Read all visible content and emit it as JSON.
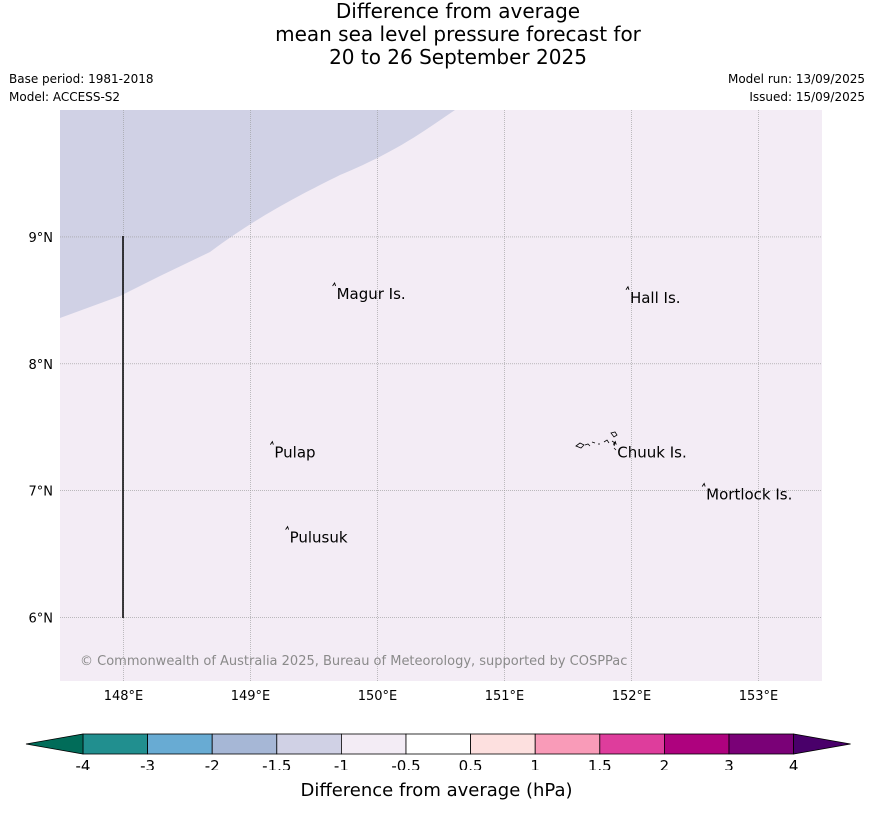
{
  "title": {
    "line1": "Difference from average",
    "line2": "mean sea level pressure forecast for",
    "line3": "20 to 26 September 2025"
  },
  "meta": {
    "base_period": "Base period: 1981-2018",
    "model": "Model: ACCESS-S2",
    "model_run": "Model run: 13/09/2025",
    "issued": "Issued: 15/09/2025"
  },
  "map": {
    "extent": {
      "lon": [
        147.5,
        153.5
      ],
      "lat": [
        5.5,
        10.0
      ]
    },
    "lon_ticks": [
      {
        "value": 148,
        "label": "148°E"
      },
      {
        "value": 149,
        "label": "149°E"
      },
      {
        "value": 150,
        "label": "150°E"
      },
      {
        "value": 151,
        "label": "151°E"
      },
      {
        "value": 152,
        "label": "152°E"
      },
      {
        "value": 153,
        "label": "153°E"
      }
    ],
    "lat_ticks": [
      {
        "value": 9,
        "label": "9°N"
      },
      {
        "value": 8,
        "label": "8°N"
      },
      {
        "value": 7,
        "label": "7°N"
      },
      {
        "value": 6,
        "label": "6°N"
      }
    ],
    "places": [
      {
        "name": "Magur Is.",
        "lon": 149.67,
        "lat": 8.55
      },
      {
        "name": "Hall Is.",
        "lon": 151.98,
        "lat": 8.52
      },
      {
        "name": "Pulap",
        "lon": 149.18,
        "lat": 7.3
      },
      {
        "name": "Chuuk Is.",
        "lon": 151.88,
        "lat": 7.3
      },
      {
        "name": "Mortlock Is.",
        "lon": 152.58,
        "lat": 6.97
      },
      {
        "name": "Pulusuk",
        "lon": 149.3,
        "lat": 6.63
      }
    ],
    "background_category": "-0.5 to -1",
    "background_color": "#f3ecf5",
    "region_category": "-1 to -1.5",
    "region_color": "#d0d1e5",
    "copyright": "© Commonwealth of Australia 2025, Bureau of Meteorology, supported by COSPPac"
  },
  "colorbar": {
    "label": "Difference from average (hPa)",
    "ticks": [
      "-4",
      "-3",
      "-2",
      "-1.5",
      "-1",
      "-0.5",
      "0.5",
      "1",
      "1.5",
      "2",
      "3",
      "4"
    ],
    "colors": [
      "#218f8f",
      "#68abd3",
      "#a6b7d6",
      "#d0d1e5",
      "#f3ecf5",
      "#ffffff",
      "#fde0df",
      "#f99bb8",
      "#de3d9c",
      "#ae027e",
      "#7a0177"
    ],
    "extend_low_color": "#016c59",
    "extend_high_color": "#49006a"
  }
}
